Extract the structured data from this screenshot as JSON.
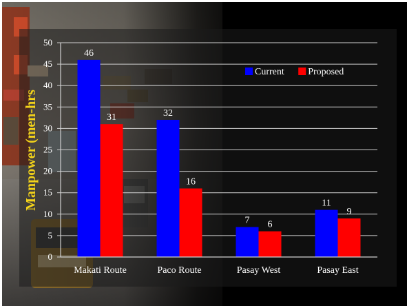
{
  "chart_data": {
    "type": "bar",
    "categories": [
      "Makati Route",
      "Paco Route",
      "Pasay West",
      "Pasay East"
    ],
    "series": [
      {
        "name": "Current",
        "values": [
          46,
          32,
          7,
          11
        ],
        "color": "#0000ff"
      },
      {
        "name": "Proposed",
        "values": [
          31,
          16,
          6,
          9
        ],
        "color": "#ff0000"
      }
    ],
    "ylabel": "Manpower (men-hrs",
    "xlabel": "",
    "ylim": [
      0,
      50
    ],
    "yticks": [
      0,
      5,
      10,
      15,
      20,
      25,
      30,
      35,
      40,
      45,
      50
    ],
    "grid": true,
    "legend": "top-right",
    "data_labels": true
  },
  "colors": {
    "grid": "#d0d0d0",
    "text": "#ffffff",
    "ylabel": "#f2d21a"
  }
}
